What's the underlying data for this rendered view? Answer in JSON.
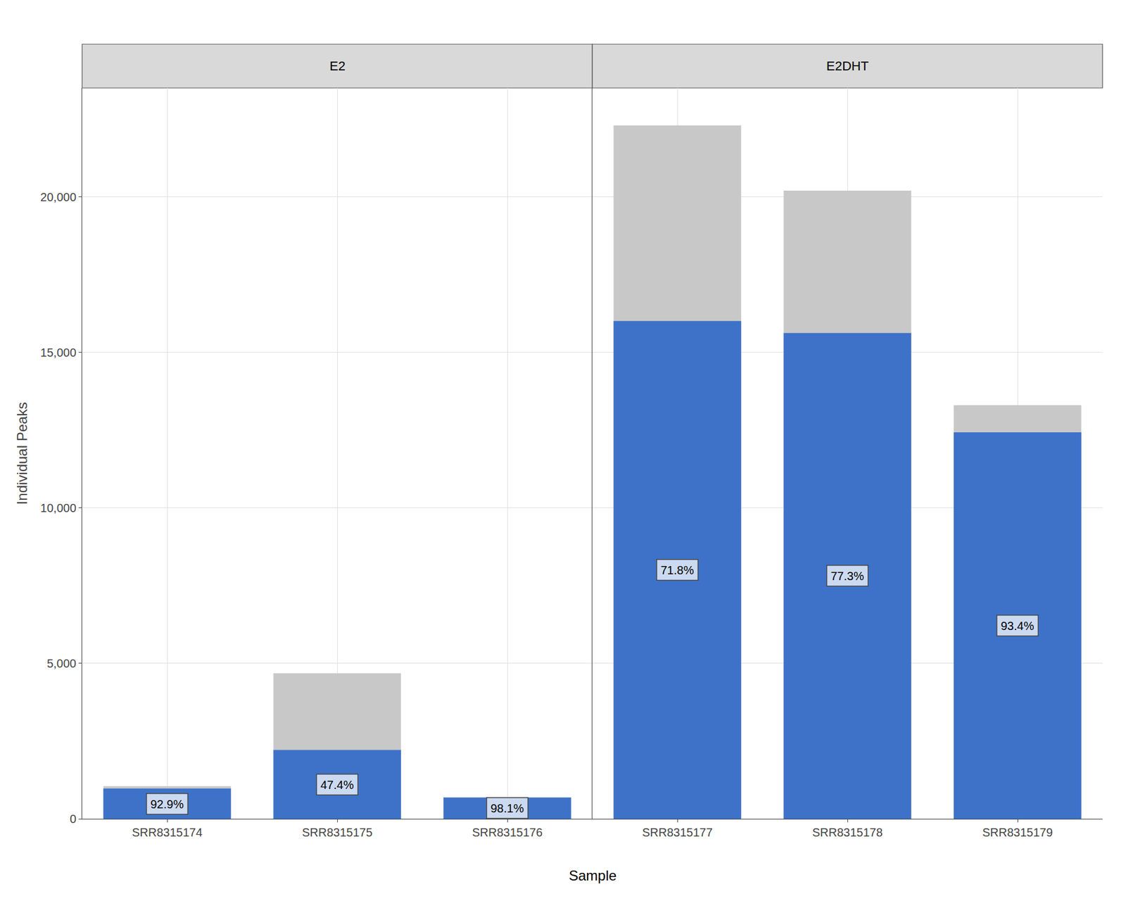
{
  "chart_data": [
    {
      "type": "bar",
      "title": "E2",
      "xlabel": "Sample",
      "ylabel": "Individual Peaks",
      "categories": [
        "SRR8315174",
        "SRR8315175",
        "SRR8315176"
      ],
      "series": [
        {
          "color": "#c8c8c8",
          "values": [
            1050,
            4680,
            700
          ]
        },
        {
          "color": "#3d72c8",
          "values": [
            975,
            2218,
            686
          ]
        }
      ],
      "annotations": [
        "92.9%",
        "47.4%",
        "98.1%"
      ],
      "ylim": [
        0,
        23500
      ],
      "yticks": [
        0,
        {
          "value": 5000,
          "label": "5,000"
        },
        {
          "value": 10000,
          "label": "10,000"
        },
        {
          "value": 15000,
          "label": "15,000"
        },
        {
          "value": 20000,
          "label": "20,000"
        }
      ],
      "grid": true
    },
    {
      "type": "bar",
      "title": "E2DHT",
      "categories": [
        "SRR8315177",
        "SRR8315178",
        "SRR8315179"
      ],
      "series": [
        {
          "color": "#c8c8c8",
          "values": [
            22300,
            20200,
            13300
          ]
        },
        {
          "color": "#3d72c8",
          "values": [
            16010,
            15620,
            12430
          ]
        }
      ],
      "annotations": [
        "71.8%",
        "77.3%",
        "93.4%"
      ],
      "ylim": [
        0,
        23500
      ],
      "yticks": [
        0,
        {
          "value": 5000,
          "label": "5,000"
        },
        {
          "value": 10000,
          "label": "10,000"
        },
        {
          "value": 15000,
          "label": "15,000"
        },
        {
          "value": 20000,
          "label": "20,000"
        }
      ],
      "grid": true,
      "tick_labels": "x"
    }
  ]
}
